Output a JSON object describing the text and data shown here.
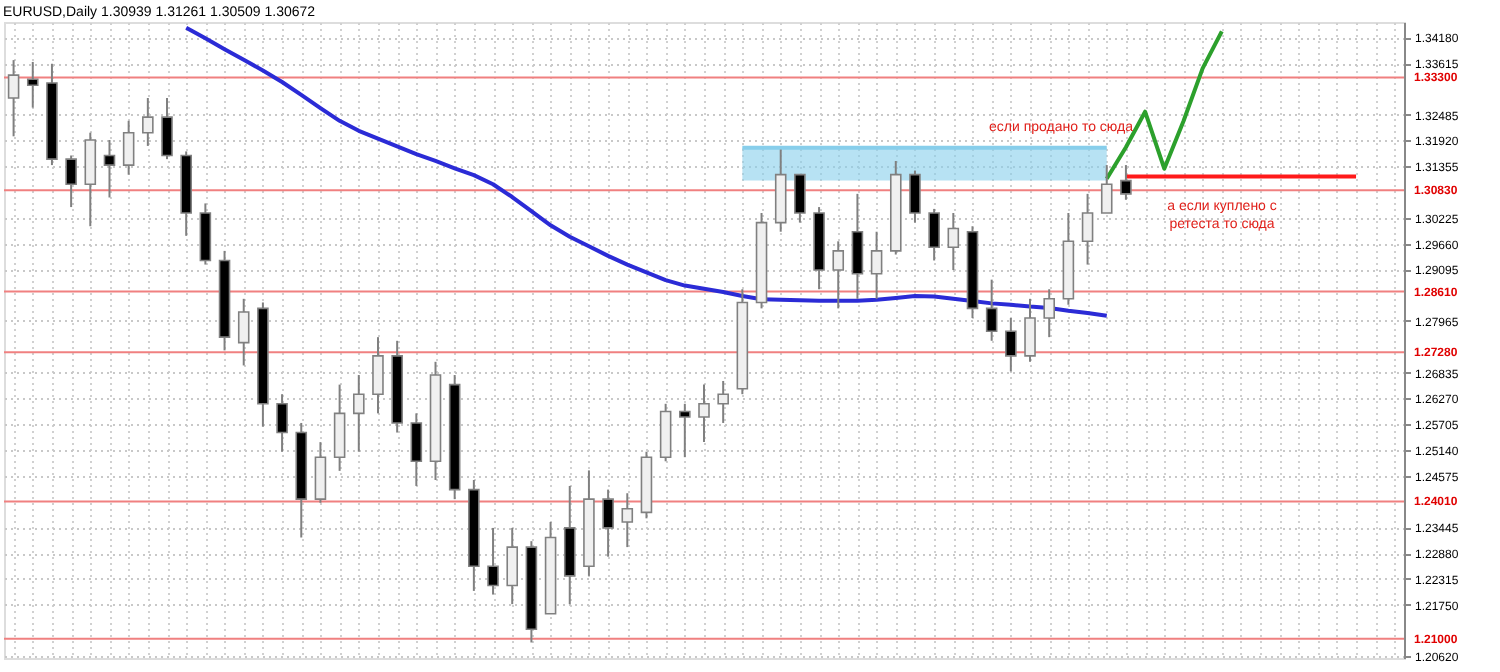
{
  "chart_data": {
    "type": "candlestick",
    "title": "EURUSD,Daily  1.30939 1.31261 1.30509 1.30672",
    "categories": [
      null,
      null,
      null,
      null,
      null,
      null,
      null,
      null,
      null,
      null,
      null,
      null,
      null,
      null,
      null,
      null,
      null,
      null,
      null,
      null,
      null,
      null,
      null,
      null,
      null,
      null,
      null,
      null,
      null,
      null,
      null,
      null,
      null,
      null,
      null,
      null,
      null,
      null,
      null,
      null,
      null,
      null,
      null,
      null,
      null,
      null,
      null,
      null,
      null,
      null,
      null,
      null,
      null,
      null,
      null,
      null,
      null,
      null,
      null,
      null,
      null,
      null,
      null,
      null,
      null,
      null,
      null,
      null,
      null,
      null,
      null,
      null,
      null
    ],
    "ohlc": [
      [
        1.3285,
        1.3368,
        1.3201,
        1.3335
      ],
      [
        1.3326,
        1.3364,
        1.3264,
        1.3313
      ],
      [
        1.3318,
        1.336,
        1.3138,
        1.3151
      ],
      [
        1.3151,
        1.3159,
        1.3046,
        1.3096
      ],
      [
        1.3096,
        1.3209,
        1.3004,
        1.3193
      ],
      [
        1.3159,
        1.3193,
        1.3067,
        1.3138
      ],
      [
        1.3138,
        1.3235,
        1.3117,
        1.3209
      ],
      [
        1.3209,
        1.3285,
        1.318,
        1.3243
      ],
      [
        1.3243,
        1.3285,
        1.3151,
        1.3159
      ],
      [
        1.3159,
        1.3168,
        1.2983,
        1.3033
      ],
      [
        1.3033,
        1.3054,
        1.292,
        1.2929
      ],
      [
        1.2929,
        1.295,
        1.2732,
        1.2761
      ],
      [
        1.2749,
        1.2845,
        1.2699,
        1.2816
      ],
      [
        1.2824,
        1.2837,
        1.2565,
        1.2615
      ],
      [
        1.2615,
        1.2636,
        1.251,
        1.2552
      ],
      [
        1.2552,
        1.2573,
        1.2322,
        1.2406
      ],
      [
        1.2406,
        1.2531,
        1.2398,
        1.2498
      ],
      [
        1.2498,
        1.2657,
        1.2468,
        1.2594
      ],
      [
        1.2594,
        1.2678,
        1.251,
        1.2636
      ],
      [
        1.2636,
        1.2761,
        1.2594,
        1.272
      ],
      [
        1.272,
        1.2753,
        1.2552,
        1.2573
      ],
      [
        1.2573,
        1.2594,
        1.2435,
        1.2489
      ],
      [
        1.2489,
        1.2707,
        1.2448,
        1.2678
      ],
      [
        1.2657,
        1.2678,
        1.2406,
        1.2427
      ],
      [
        1.2427,
        1.2448,
        1.2205,
        1.2259
      ],
      [
        1.2259,
        1.2343,
        1.2197,
        1.2217
      ],
      [
        1.2217,
        1.2343,
        1.2176,
        1.2301
      ],
      [
        1.2301,
        1.2314,
        1.2092,
        1.2121
      ],
      [
        1.2155,
        1.2356,
        1.2155,
        1.2322
      ],
      [
        1.2343,
        1.2435,
        1.2176,
        1.2238
      ],
      [
        1.2259,
        1.2469,
        1.2238,
        1.2406
      ],
      [
        1.2406,
        1.2427,
        1.228,
        1.2343
      ],
      [
        1.2356,
        1.2419,
        1.2301,
        1.2385
      ],
      [
        1.2377,
        1.251,
        1.2364,
        1.2498
      ],
      [
        1.2498,
        1.2615,
        1.2489,
        1.2598
      ],
      [
        1.2598,
        1.2615,
        1.2498,
        1.2586
      ],
      [
        1.2586,
        1.2657,
        1.2531,
        1.2615
      ],
      [
        1.2615,
        1.2665,
        1.2573,
        1.2636
      ],
      [
        1.2648,
        1.2866,
        1.2636,
        1.2837
      ],
      [
        1.2837,
        1.3033,
        1.2824,
        1.3012
      ],
      [
        1.3012,
        1.3172,
        1.2992,
        1.3117
      ],
      [
        1.3117,
        1.3117,
        1.3012,
        1.3033
      ],
      [
        1.3033,
        1.3046,
        1.2866,
        1.2908
      ],
      [
        1.2908,
        1.2971,
        1.2824,
        1.295
      ],
      [
        1.2992,
        1.3075,
        1.2845,
        1.29
      ],
      [
        1.29,
        1.2992,
        1.2845,
        1.295
      ],
      [
        1.295,
        1.3147,
        1.2942,
        1.3117
      ],
      [
        1.3117,
        1.3126,
        1.3012,
        1.3033
      ],
      [
        1.3033,
        1.3042,
        1.2929,
        1.2958
      ],
      [
        1.2958,
        1.3033,
        1.2908,
        1.2999
      ],
      [
        1.2992,
        1.3004,
        1.2803,
        1.2824
      ],
      [
        1.2824,
        1.2887,
        1.2753,
        1.2774
      ],
      [
        1.2774,
        1.2803,
        1.2686,
        1.272
      ],
      [
        1.272,
        1.2845,
        1.2707,
        1.2803
      ],
      [
        1.2803,
        1.2866,
        1.2761,
        1.2845
      ],
      [
        1.2845,
        1.3033,
        1.2832,
        1.2971
      ],
      [
        1.2971,
        1.3075,
        1.292,
        1.3033
      ],
      [
        1.3033,
        1.3138,
        1.3033,
        1.3096
      ],
      [
        1.3104,
        1.3138,
        1.3062,
        1.3075
      ],
      null,
      null,
      null,
      null,
      null,
      null,
      null,
      null,
      null,
      null,
      null,
      null,
      null,
      null
    ],
    "series": [
      {
        "type": "line",
        "color": "#87ceeb",
        "upper": [
          null,
          null,
          null,
          null,
          null,
          null,
          null,
          null,
          null,
          null,
          null,
          null,
          null,
          null,
          null,
          null,
          null,
          null,
          null,
          null,
          null,
          null,
          null,
          null,
          null,
          null,
          null,
          null,
          null,
          null,
          null,
          null,
          null,
          null,
          null,
          null,
          null,
          null,
          1.3176,
          1.3176,
          1.3176,
          1.3176,
          1.3176,
          1.3176,
          1.3176,
          1.3176,
          1.3176,
          1.3176,
          1.3176,
          1.3176,
          1.3176,
          1.3176,
          1.3176,
          1.3176,
          1.3176,
          1.3176,
          1.3176,
          1.3176,
          null,
          null,
          null,
          null,
          null,
          null,
          null,
          null,
          null,
          null,
          null,
          null,
          null,
          null,
          null
        ],
        "values": [
          null,
          null,
          null,
          null,
          null,
          null,
          null,
          null,
          null,
          null,
          null,
          null,
          null,
          null,
          null,
          null,
          null,
          null,
          null,
          null,
          null,
          null,
          null,
          null,
          null,
          null,
          null,
          null,
          null,
          null,
          null,
          null,
          null,
          null,
          null,
          null,
          null,
          null,
          1.3176,
          1.3176,
          1.3176,
          1.3176,
          1.3176,
          1.3176,
          1.3176,
          1.3176,
          1.3176,
          1.3176,
          1.3176,
          1.3176,
          1.3176,
          1.3176,
          1.3176,
          1.3176,
          1.3176,
          1.3176,
          1.3176,
          1.3176,
          null,
          null,
          null,
          null,
          null,
          null,
          null,
          null,
          null,
          null,
          null,
          null,
          null,
          null,
          null
        ],
        "lower": [
          null,
          null,
          null,
          null,
          null,
          null,
          null,
          null,
          null,
          null,
          null,
          null,
          null,
          null,
          null,
          null,
          null,
          null,
          null,
          null,
          null,
          null,
          null,
          null,
          null,
          null,
          null,
          null,
          null,
          null,
          null,
          null,
          null,
          null,
          null,
          null,
          null,
          null,
          1.3104,
          1.3104,
          1.3104,
          1.3104,
          1.3104,
          1.3104,
          1.3104,
          1.3104,
          1.3104,
          1.3104,
          1.3104,
          1.3104,
          1.3104,
          1.3104,
          1.3104,
          1.3104,
          1.3104,
          1.3104,
          1.3104,
          1.3104,
          null,
          null,
          null,
          null,
          null,
          null,
          null,
          null,
          null,
          null,
          null,
          null,
          null,
          null,
          null
        ]
      },
      {
        "type": "line",
        "color": "#2b2bd6",
        "values": [
          null,
          null,
          null,
          null,
          null,
          null,
          null,
          null,
          null,
          1.3439,
          1.3416,
          1.3392,
          1.3369,
          1.3345,
          1.332,
          1.3292,
          1.3263,
          1.3235,
          1.3213,
          1.3196,
          1.3179,
          1.3162,
          1.3147,
          1.3131,
          1.3116,
          1.3096,
          1.3068,
          1.3037,
          1.3006,
          1.2981,
          1.296,
          1.2939,
          1.292,
          1.2903,
          1.2886,
          1.2874,
          1.2867,
          1.286,
          1.2851,
          1.2844,
          1.2843,
          1.2842,
          1.2841,
          1.2841,
          1.2841,
          1.2843,
          1.2847,
          1.2851,
          1.285,
          1.2845,
          1.284,
          1.2835,
          1.2832,
          1.2828,
          1.2825,
          1.2819,
          1.2814,
          1.2808,
          null,
          null,
          null,
          null,
          null,
          null,
          null,
          null,
          null,
          null,
          null,
          null,
          null,
          null,
          null
        ]
      },
      {
        "type": "line",
        "color": "#ff1a1a",
        "values": [
          null,
          null,
          null,
          null,
          null,
          null,
          null,
          null,
          null,
          null,
          null,
          null,
          null,
          null,
          null,
          null,
          null,
          null,
          null,
          null,
          null,
          null,
          null,
          null,
          null,
          null,
          null,
          null,
          null,
          null,
          null,
          null,
          null,
          null,
          null,
          null,
          null,
          null,
          null,
          null,
          null,
          null,
          null,
          null,
          null,
          null,
          null,
          null,
          null,
          null,
          null,
          null,
          null,
          null,
          null,
          null,
          null,
          null,
          1.3113,
          1.3113,
          1.3113,
          1.3113,
          1.3113,
          1.3113,
          1.3113,
          1.3113,
          1.3113,
          1.3113,
          1.3113,
          1.3113,
          1.3113,
          null,
          null
        ]
      },
      {
        "type": "line",
        "color": "#2ca02c",
        "values": [
          null,
          null,
          null,
          null,
          null,
          null,
          null,
          null,
          null,
          null,
          null,
          null,
          null,
          null,
          null,
          null,
          null,
          null,
          null,
          null,
          null,
          null,
          null,
          null,
          null,
          null,
          null,
          null,
          null,
          null,
          null,
          null,
          null,
          null,
          null,
          null,
          null,
          null,
          null,
          null,
          null,
          null,
          null,
          null,
          null,
          null,
          null,
          null,
          null,
          null,
          null,
          null,
          null,
          null,
          null,
          null,
          null,
          1.3108,
          1.3177,
          1.3255,
          1.313,
          1.3234,
          1.335,
          1.3431,
          null,
          null,
          null,
          null,
          null,
          null,
          null,
          null,
          null
        ]
      }
    ],
    "ref_lines": [
      {
        "axis": "y",
        "value": 1.333,
        "label": "1.33300",
        "color": "#f08080"
      },
      {
        "axis": "y",
        "value": 1.3083,
        "label": "1.30830",
        "color": "#f08080"
      },
      {
        "axis": "y",
        "value": 1.2861,
        "label": "1.28610",
        "color": "#f08080"
      },
      {
        "axis": "y",
        "value": 1.2728,
        "label": "1.27280",
        "color": "#f08080"
      },
      {
        "axis": "y",
        "value": 1.2401,
        "label": "1.24010",
        "color": "#f08080"
      },
      {
        "axis": "y",
        "value": 1.21,
        "label": "1.21000",
        "color": "#f08080"
      }
    ],
    "annotations": [
      "если продано то сюда",
      "а если куплено с\nретеста то сюда"
    ],
    "ylim": [
      1.2058,
      1.34515
    ],
    "yticks": [
      {
        "value": 1.3418,
        "label": "1.34180"
      },
      {
        "value": 1.33615,
        "label": "1.33615"
      },
      {
        "value": 1.32485,
        "label": "1.32485"
      },
      {
        "value": 1.3192,
        "label": "1.31920"
      },
      {
        "value": 1.31355,
        "label": "1.31355"
      },
      {
        "value": 1.30225,
        "label": "1.30225"
      },
      {
        "value": 1.2966,
        "label": "1.29660"
      },
      {
        "value": 1.29095,
        "label": "1.29095"
      },
      {
        "value": 1.27965,
        "label": "1.27965"
      },
      {
        "value": 1.26835,
        "label": "1.26835"
      },
      {
        "value": 1.2627,
        "label": "1.26270"
      },
      {
        "value": 1.25705,
        "label": "1.25705"
      },
      {
        "value": 1.2514,
        "label": "1.25140"
      },
      {
        "value": 1.24575,
        "label": "1.24575"
      },
      {
        "value": 1.23445,
        "label": "1.23445"
      },
      {
        "value": 1.2288,
        "label": "1.22880"
      },
      {
        "value": 1.22315,
        "label": "1.22315"
      },
      {
        "value": 1.2175,
        "label": "1.21750"
      },
      {
        "value": 1.2062,
        "label": "1.20620"
      }
    ],
    "tick_labels": "y",
    "grid": true
  }
}
